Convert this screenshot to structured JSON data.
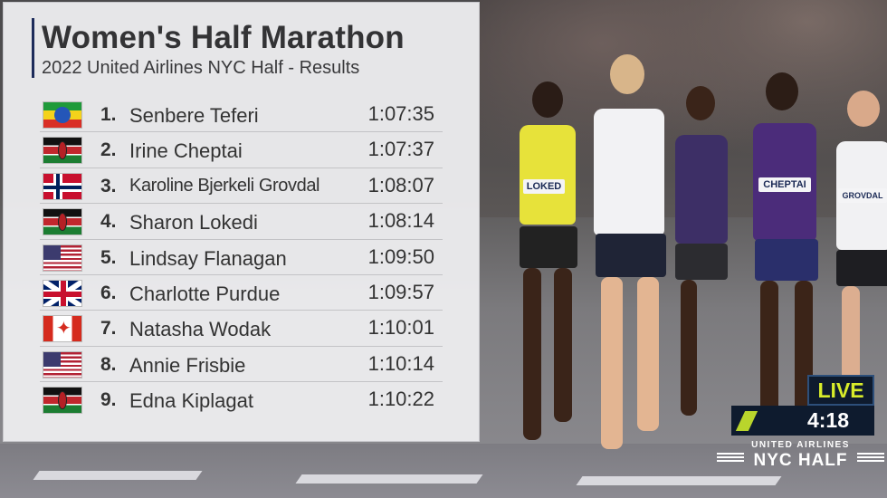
{
  "board": {
    "title": "Women's Half Marathon",
    "subtitle": "2022 United Airlines NYC Half - Results",
    "results": [
      {
        "place": "1.",
        "name": "Senbere Teferi",
        "time": "1:07:35",
        "flag": "ethiopia-flag"
      },
      {
        "place": "2.",
        "name": "Irine Cheptai",
        "time": "1:07:37",
        "flag": "kenya-flag"
      },
      {
        "place": "3.",
        "name": "Karoline Bjerkeli Grovdal",
        "time": "1:08:07",
        "flag": "norway-flag"
      },
      {
        "place": "4.",
        "name": "Sharon Lokedi",
        "time": "1:08:14",
        "flag": "kenya-flag"
      },
      {
        "place": "5.",
        "name": "Lindsay Flanagan",
        "time": "1:09:50",
        "flag": "usa-flag"
      },
      {
        "place": "6.",
        "name": "Charlotte Purdue",
        "time": "1:09:57",
        "flag": "uk-flag"
      },
      {
        "place": "7.",
        "name": "Natasha Wodak",
        "time": "1:10:01",
        "flag": "canada-flag"
      },
      {
        "place": "8.",
        "name": "Annie Frisbie",
        "time": "1:10:14",
        "flag": "usa-flag"
      },
      {
        "place": "9.",
        "name": "Edna Kiplagat",
        "time": "1:10:22",
        "flag": "kenya-flag"
      }
    ]
  },
  "broadcast": {
    "live_label": "LIVE",
    "race_clock": "4:18",
    "sponsor": "UNITED AIRLINES",
    "event_logo": "NYC HALF",
    "accent_color": "#d8ec2a"
  },
  "bibs": {
    "runner_a": "LOKED",
    "runner_b": "CHEPTAI",
    "runner_c": "GROVDAL"
  }
}
